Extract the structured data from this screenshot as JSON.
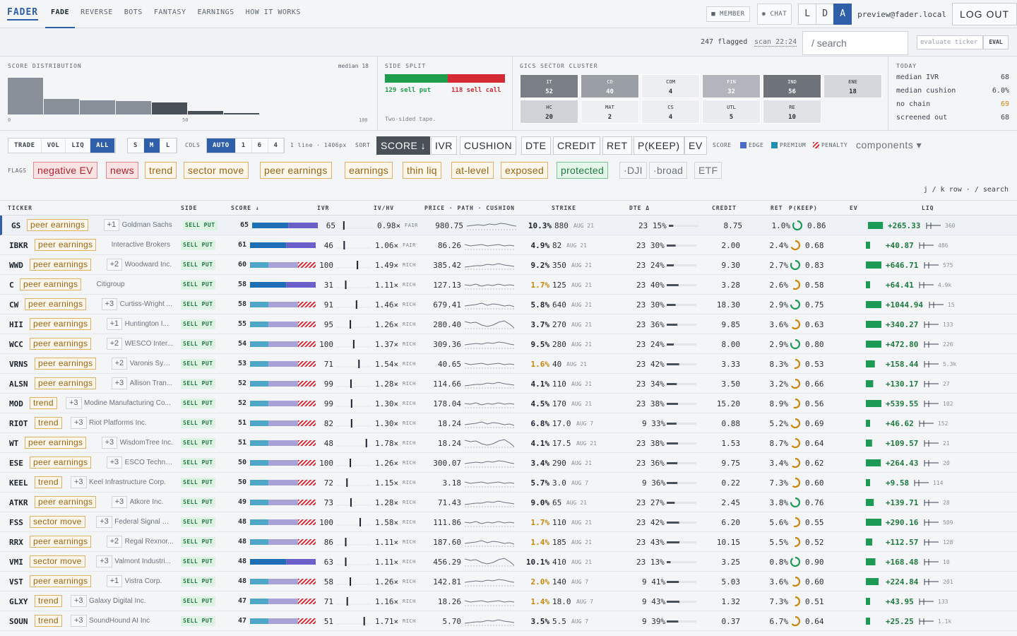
{
  "nav": {
    "brand": "FADER",
    "tabs": [
      "FADE",
      "REVERSE",
      "BOTS",
      "FANTASY",
      "EARNINGS",
      "HOW IT WORKS"
    ],
    "member": "MEMBER",
    "chat": "CHAT",
    "lda": [
      "L",
      "D",
      "A"
    ],
    "user": "preview@fader.local",
    "logout": "LOG OUT"
  },
  "bar2": {
    "flagged": "247 flagged",
    "scan": "scan 22:24",
    "search_placeholder": "/ search",
    "eval_placeholder": "evaluate ticker",
    "eval": "EVAL"
  },
  "dist": {
    "title": "SCORE DISTRIBUTION",
    "median": "median 18",
    "bins": [
      100,
      42,
      38,
      36,
      32,
      10,
      3
    ],
    "ax0": "0",
    "ax50": "50",
    "ax100": "100"
  },
  "split": {
    "title": "SIDE SPLIT",
    "put": "129 sell put",
    "call": "118 sell call",
    "puts": 129,
    "calls": 118,
    "note": "Two-sided tape."
  },
  "sector": {
    "title": "GICS SECTOR CLUSTER",
    "cells": [
      {
        "k": "IT",
        "v": "52",
        "c": "#7a7e85"
      },
      {
        "k": "CD",
        "v": "40",
        "c": "#9a9ea5"
      },
      {
        "k": "COM",
        "v": "4",
        "c": "#eceef1"
      },
      {
        "k": "FIN",
        "v": "32",
        "c": "#b2b6bc"
      },
      {
        "k": "IND",
        "v": "56",
        "c": "#6e737a"
      },
      {
        "k": "ENE",
        "v": "18",
        "c": "#d4d7db"
      },
      {
        "k": "HC",
        "v": "20",
        "c": "#cfd2d6"
      },
      {
        "k": "MAT",
        "v": "2",
        "c": "#eef0f2"
      },
      {
        "k": "CS",
        "v": "4",
        "c": "#eceef1"
      },
      {
        "k": "UTL",
        "v": "5",
        "c": "#eaecef"
      },
      {
        "k": "RE",
        "v": "10",
        "c": "#e0e2e5"
      }
    ]
  },
  "today": {
    "title": "TODAY",
    "rows": [
      {
        "k": "median IVR",
        "v": "68"
      },
      {
        "k": "median cushion",
        "v": "6.0%"
      },
      {
        "k": "no chain",
        "v": "69"
      },
      {
        "k": "screened out",
        "v": "68"
      }
    ]
  },
  "toolbar": {
    "trade": [
      "TRADE",
      "VOL",
      "LIQ",
      "ALL"
    ],
    "sml": [
      "S",
      "M",
      "L"
    ],
    "cols_label": "COLS",
    "cols": [
      "AUTO",
      "1",
      "6",
      "4"
    ],
    "line": "1 line · 1406px",
    "sort_label": "SORT",
    "sort": [
      "SCORE ↓",
      "IVR",
      "CUSHION",
      "DTE",
      "CREDIT",
      "RET",
      "P(KEEP)",
      "EV"
    ],
    "score_label": "SCORE",
    "legend": [
      "EDGE",
      "PREMIUM",
      "PENALTY"
    ],
    "components": "components ▾"
  },
  "flags": {
    "label": "FLAGS",
    "chips": [
      "negative EV",
      "news",
      "trend",
      "sector move",
      "peer earnings",
      "earnings",
      "thin liq",
      "at-level",
      "exposed",
      "protected",
      "·DJI",
      "·broad",
      "ETF"
    ]
  },
  "hint": "j / k row · / search",
  "table": {
    "headers": [
      "TICKER",
      "SIDE",
      "SCORE ↓",
      "IVR",
      "IV/HV",
      "PRICE · PATH · CUSHION",
      "STRIKE",
      "DTE Δ",
      "CREDIT",
      "RET",
      "P(KEEP)",
      "EV",
      "LIQ"
    ],
    "rows": [
      {
        "t": "GS",
        "tag": "peer earnings",
        "p": "+1",
        "n": "Goldman Sachs",
        "s": "SELL PUT",
        "sc": 65,
        "ivr": "65",
        "ivhv": "0.98×",
        "r": "FAIR",
        "price": "980.75",
        "cush": "10.3%",
        "strike": "880",
        "exp": "AUG 21",
        "dte": "23",
        "d": "15%",
        "cr": "8.75",
        "ret": "1.0%",
        "pk": "0.86",
        "ev": "+265.33",
        "liq": "360"
      },
      {
        "t": "IBKR",
        "tag": "peer earnings",
        "p": "",
        "n": "Interactive Brokers",
        "s": "SELL PUT",
        "sc": 61,
        "ivr": "46",
        "ivhv": "1.06×",
        "r": "FAIR",
        "price": "86.26",
        "cush": "4.9%",
        "strike": "82",
        "exp": "AUG 21",
        "dte": "23",
        "d": "30%",
        "cr": "2.00",
        "ret": "2.4%",
        "pk": "0.68",
        "ev": "+40.87",
        "liq": "486"
      },
      {
        "t": "WWD",
        "tag": "peer earnings",
        "p": "+2",
        "n": "Woodward Inc.",
        "s": "SELL PUT",
        "sc": 60,
        "ivr": "100",
        "ivhv": "1.49×",
        "r": "RICH",
        "price": "385.42",
        "cush": "9.2%",
        "strike": "350",
        "exp": "AUG 21",
        "dte": "23",
        "d": "24%",
        "cr": "9.30",
        "ret": "2.7%",
        "pk": "0.83",
        "ev": "+646.71",
        "liq": "575"
      },
      {
        "t": "C",
        "tag": "peer earnings",
        "p": "",
        "n": "Citigroup",
        "s": "SELL PUT",
        "sc": 58,
        "ivr": "31",
        "ivhv": "1.11×",
        "r": "RICH",
        "price": "127.13",
        "cush": "1.7%",
        "strike": "125",
        "exp": "AUG 21",
        "dte": "23",
        "d": "40%",
        "cr": "3.28",
        "ret": "2.6%",
        "pk": "0.58",
        "ev": "+64.41",
        "liq": "4.9k"
      },
      {
        "t": "CW",
        "tag": "peer earnings",
        "p": "+3",
        "n": "Curtiss-Wright ...",
        "s": "SELL PUT",
        "sc": 58,
        "ivr": "91",
        "ivhv": "1.46×",
        "r": "RICH",
        "price": "679.41",
        "cush": "5.8%",
        "strike": "640",
        "exp": "AUG 21",
        "dte": "23",
        "d": "30%",
        "cr": "18.30",
        "ret": "2.9%",
        "pk": "0.75",
        "ev": "+1044.94",
        "liq": "15"
      },
      {
        "t": "HII",
        "tag": "peer earnings",
        "p": "+1",
        "n": "Huntington I...",
        "s": "SELL PUT",
        "sc": 55,
        "ivr": "95",
        "ivhv": "1.26×",
        "r": "RICH",
        "price": "280.40",
        "cush": "3.7%",
        "strike": "270",
        "exp": "AUG 21",
        "dte": "23",
        "d": "36%",
        "cr": "9.85",
        "ret": "3.6%",
        "pk": "0.63",
        "ev": "+340.27",
        "liq": "133"
      },
      {
        "t": "WCC",
        "tag": "peer earnings",
        "p": "+2",
        "n": "WESCO Inter...",
        "s": "SELL PUT",
        "sc": 54,
        "ivr": "100",
        "ivhv": "1.37×",
        "r": "RICH",
        "price": "309.36",
        "cush": "9.5%",
        "strike": "280",
        "exp": "AUG 21",
        "dte": "23",
        "d": "24%",
        "cr": "8.00",
        "ret": "2.9%",
        "pk": "0.80",
        "ev": "+472.80",
        "liq": "226"
      },
      {
        "t": "VRNS",
        "tag": "peer earnings",
        "p": "+2",
        "n": "Varonis Syst...",
        "s": "SELL PUT",
        "sc": 53,
        "ivr": "71",
        "ivhv": "1.54×",
        "r": "RICH",
        "price": "40.65",
        "cush": "1.6%",
        "strike": "40",
        "exp": "AUG 21",
        "dte": "23",
        "d": "42%",
        "cr": "3.33",
        "ret": "8.3%",
        "pk": "0.53",
        "ev": "+158.44",
        "liq": "5.3k"
      },
      {
        "t": "ALSN",
        "tag": "peer earnings",
        "p": "+3",
        "n": "Allison Tran...",
        "s": "SELL PUT",
        "sc": 52,
        "ivr": "99",
        "ivhv": "1.28×",
        "r": "RICH",
        "price": "114.66",
        "cush": "4.1%",
        "strike": "110",
        "exp": "AUG 21",
        "dte": "23",
        "d": "34%",
        "cr": "3.50",
        "ret": "3.2%",
        "pk": "0.66",
        "ev": "+130.17",
        "liq": "27"
      },
      {
        "t": "MOD",
        "tag": "trend",
        "p": "+3",
        "n": "Modine Manufacturing Co...",
        "s": "SELL PUT",
        "sc": 52,
        "ivr": "99",
        "ivhv": "1.30×",
        "r": "RICH",
        "price": "178.04",
        "cush": "4.5%",
        "strike": "170",
        "exp": "AUG 21",
        "dte": "23",
        "d": "38%",
        "cr": "15.20",
        "ret": "8.9%",
        "pk": "0.56",
        "ev": "+539.55",
        "liq": "102"
      },
      {
        "t": "RIOT",
        "tag": "trend",
        "p": "+3",
        "n": "Riot Platforms Inc.",
        "s": "SELL PUT",
        "sc": 51,
        "ivr": "82",
        "ivhv": "1.30×",
        "r": "RICH",
        "price": "18.24",
        "cush": "6.8%",
        "strike": "17.0",
        "exp": "AUG 7",
        "dte": "9",
        "d": "33%",
        "cr": "0.88",
        "ret": "5.2%",
        "pk": "0.69",
        "ev": "+46.62",
        "liq": "152"
      },
      {
        "t": "WT",
        "tag": "peer earnings",
        "p": "+3",
        "n": "WisdomTree Inc.",
        "s": "SELL PUT",
        "sc": 51,
        "ivr": "48",
        "ivhv": "1.78×",
        "r": "RICH",
        "price": "18.24",
        "cush": "4.1%",
        "strike": "17.5",
        "exp": "AUG 21",
        "dte": "23",
        "d": "38%",
        "cr": "1.53",
        "ret": "8.7%",
        "pk": "0.64",
        "ev": "+109.57",
        "liq": "21"
      },
      {
        "t": "ESE",
        "tag": "peer earnings",
        "p": "+3",
        "n": "ESCO Technol...",
        "s": "SELL PUT",
        "sc": 50,
        "ivr": "100",
        "ivhv": "1.26×",
        "r": "RICH",
        "price": "300.07",
        "cush": "3.4%",
        "strike": "290",
        "exp": "AUG 21",
        "dte": "23",
        "d": "36%",
        "cr": "9.75",
        "ret": "3.4%",
        "pk": "0.62",
        "ev": "+264.43",
        "liq": "20"
      },
      {
        "t": "KEEL",
        "tag": "trend",
        "p": "+3",
        "n": "Keel Infrastructure Corp.",
        "s": "SELL PUT",
        "sc": 50,
        "ivr": "72",
        "ivhv": "1.15×",
        "r": "RICH",
        "price": "3.18",
        "cush": "5.7%",
        "strike": "3.0",
        "exp": "AUG 7",
        "dte": "9",
        "d": "36%",
        "cr": "0.22",
        "ret": "7.3%",
        "pk": "0.60",
        "ev": "+9.58",
        "liq": "114"
      },
      {
        "t": "ATKR",
        "tag": "peer earnings",
        "p": "+3",
        "n": "Atkore Inc.",
        "s": "SELL PUT",
        "sc": 49,
        "ivr": "73",
        "ivhv": "1.28×",
        "r": "RICH",
        "price": "71.43",
        "cush": "9.0%",
        "strike": "65",
        "exp": "AUG 21",
        "dte": "23",
        "d": "27%",
        "cr": "2.45",
        "ret": "3.8%",
        "pk": "0.76",
        "ev": "+139.71",
        "liq": "28"
      },
      {
        "t": "FSS",
        "tag": "sector move",
        "p": "+3",
        "n": "Federal Signal Co...",
        "s": "SELL PUT",
        "sc": 48,
        "ivr": "100",
        "ivhv": "1.58×",
        "r": "RICH",
        "price": "111.86",
        "cush": "1.7%",
        "strike": "110",
        "exp": "AUG 21",
        "dte": "23",
        "d": "42%",
        "cr": "6.20",
        "ret": "5.6%",
        "pk": "0.55",
        "ev": "+290.16",
        "liq": "509"
      },
      {
        "t": "RRX",
        "tag": "peer earnings",
        "p": "+2",
        "n": "Regal Rexnor...",
        "s": "SELL PUT",
        "sc": 48,
        "ivr": "86",
        "ivhv": "1.11×",
        "r": "RICH",
        "price": "187.60",
        "cush": "1.4%",
        "strike": "185",
        "exp": "AUG 21",
        "dte": "23",
        "d": "43%",
        "cr": "10.15",
        "ret": "5.5%",
        "pk": "0.52",
        "ev": "+112.57",
        "liq": "128"
      },
      {
        "t": "VMI",
        "tag": "sector move",
        "p": "+3",
        "n": "Valmont Industri...",
        "s": "SELL PUT",
        "sc": 48,
        "ivr": "63",
        "ivhv": "1.11×",
        "r": "RICH",
        "price": "456.29",
        "cush": "10.1%",
        "strike": "410",
        "exp": "AUG 21",
        "dte": "23",
        "d": "13%",
        "cr": "3.25",
        "ret": "0.8%",
        "pk": "0.90",
        "ev": "+168.48",
        "liq": "10"
      },
      {
        "t": "VST",
        "tag": "peer earnings",
        "p": "+1",
        "n": "Vistra Corp.",
        "s": "SELL PUT",
        "sc": 48,
        "ivr": "58",
        "ivhv": "1.26×",
        "r": "RICH",
        "price": "142.81",
        "cush": "2.0%",
        "strike": "140",
        "exp": "AUG 7",
        "dte": "9",
        "d": "41%",
        "cr": "5.03",
        "ret": "3.6%",
        "pk": "0.60",
        "ev": "+224.84",
        "liq": "201"
      },
      {
        "t": "GLXY",
        "tag": "trend",
        "p": "+3",
        "n": "Galaxy Digital Inc.",
        "s": "SELL PUT",
        "sc": 47,
        "ivr": "71",
        "ivhv": "1.16×",
        "r": "RICH",
        "price": "18.26",
        "cush": "1.4%",
        "strike": "18.0",
        "exp": "AUG 7",
        "dte": "9",
        "d": "43%",
        "cr": "1.32",
        "ret": "7.3%",
        "pk": "0.51",
        "ev": "+43.95",
        "liq": "133"
      },
      {
        "t": "SOUN",
        "tag": "trend",
        "p": "+3",
        "n": "SoundHound AI Inc",
        "s": "SELL PUT",
        "sc": 47,
        "ivr": "51",
        "ivhv": "1.71×",
        "r": "RICH",
        "price": "5.70",
        "cush": "3.5%",
        "strike": "5.5",
        "exp": "AUG 7",
        "dte": "9",
        "d": "39%",
        "cr": "0.37",
        "ret": "6.7%",
        "pk": "0.64",
        "ev": "+25.25",
        "liq": "1.1k"
      }
    ]
  }
}
